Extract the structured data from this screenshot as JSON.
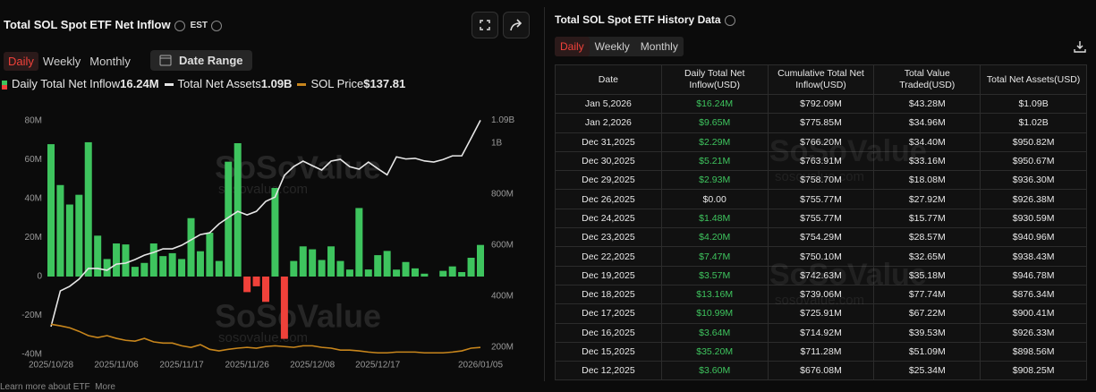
{
  "header": {
    "title": "Total SOL Spot ETF Net Inflow",
    "timezone": "EST",
    "tabs": [
      "Daily",
      "Weekly",
      "Monthly"
    ],
    "date_range": "Date Range"
  },
  "watermark": {
    "brand": "SoSoValue",
    "site": "sosovalue.com"
  },
  "chart_data": {
    "type": "bar",
    "categories": [
      "2025/10/28",
      null,
      null,
      null,
      null,
      null,
      null,
      "2025/11/06",
      null,
      null,
      null,
      null,
      null,
      null,
      "2025/11/17",
      null,
      null,
      null,
      null,
      null,
      null,
      "2025/11/26",
      null,
      null,
      null,
      null,
      null,
      null,
      "2025/12/08",
      null,
      null,
      null,
      null,
      null,
      null,
      "2025/12/17",
      null,
      null,
      null,
      null,
      null,
      null,
      null,
      null,
      null,
      null,
      "2026/01/05"
    ],
    "series": [
      {
        "name": "Daily Total Net Inflow",
        "color": "#3ec45e",
        "negative_color": "#f0413a",
        "values": [
          68000000,
          47000000,
          37000000,
          42000000,
          69000000,
          21000000,
          9000000,
          17000000,
          16500000,
          5000000,
          7000000,
          17000000,
          10500000,
          12000000,
          9000000,
          30000000,
          13000000,
          22500000,
          8000000,
          59000000,
          68500000,
          -8000000,
          -5000000,
          -13000000,
          45500000,
          -32000000,
          8000000,
          15500000,
          14000000,
          8500000,
          15500000,
          8000000,
          3600000,
          35200000,
          3640000,
          10990000,
          13160000,
          3570000,
          7470000,
          4200000,
          1480000,
          0,
          2930000,
          5210000,
          2290000,
          9650000,
          16240000
        ]
      },
      {
        "name": "Total Net Assets",
        "color": "#e6e6e6",
        "axis": "y2",
        "values": [
          281000000,
          421000000,
          439000000,
          467000000,
          509000000,
          509000000,
          502000000,
          526000000,
          530000000,
          544000000,
          561000000,
          572000000,
          586000000,
          586000000,
          600000000,
          621000000,
          642000000,
          649000000,
          684000000,
          709000000,
          733000000,
          719000000,
          733000000,
          772000000,
          789000000,
          874000000,
          909000000,
          930000000,
          912000000,
          895000000,
          930000000,
          937000000,
          908250000,
          898560000,
          926330000,
          900410000,
          876340000,
          946780000,
          938430000,
          940960000,
          930590000,
          926380000,
          936300000,
          950670000,
          950820000,
          1020000000,
          1090000000
        ]
      },
      {
        "name": "SOL Price",
        "color": "#c8861c",
        "axis": "y3",
        "values": [
          197,
          193,
          188,
          179,
          168,
          163,
          168,
          161,
          156,
          154,
          161,
          152,
          149,
          149,
          142,
          138,
          145,
          133,
          129,
          133,
          136,
          138,
          136,
          140,
          142,
          140,
          138,
          142,
          142,
          138,
          136,
          131,
          131,
          129,
          126,
          124,
          124,
          126,
          126,
          126,
          124,
          124,
          124,
          126,
          129,
          136,
          137.81
        ]
      }
    ],
    "legend_values": [
      "16.24M",
      "1.09B",
      "$137.81"
    ],
    "ylim": [
      -40000000,
      80000000
    ],
    "yticks": [
      {
        "value": -40000000,
        "label": "-40M"
      },
      {
        "value": -20000000,
        "label": "-20M"
      },
      0,
      {
        "value": 20000000,
        "label": "20M"
      },
      {
        "value": 40000000,
        "label": "40M"
      },
      {
        "value": 60000000,
        "label": "60M"
      },
      {
        "value": 80000000,
        "label": "80M"
      }
    ],
    "y2lim": [
      172000000,
      1088000000
    ],
    "y2ticks": [
      {
        "value": 200000000,
        "label": "200M"
      },
      {
        "value": 400000000,
        "label": "400M"
      },
      {
        "value": 600000000,
        "label": "600M"
      },
      {
        "value": 800000000,
        "label": "800M"
      },
      {
        "value": 1000000000,
        "label": "1B"
      },
      {
        "value": 1090000000,
        "label": "1.09B"
      }
    ],
    "y3lim": [
      120,
      717
    ],
    "grid": false
  },
  "history": {
    "title": "Total SOL Spot ETF History Data",
    "tabs": [
      "Daily",
      "Weekly",
      "Monthly"
    ],
    "positive_color": "#3ec45e",
    "columns": [
      "Date",
      "Daily Total Net Inflow(USD)",
      "Cumulative Total Net Inflow(USD)",
      "Total Value Traded(USD)",
      "Total Net Assets(USD)"
    ],
    "rows": [
      [
        "Jan 5,2026",
        "$16.24M",
        "$792.09M",
        "$43.28M",
        "$1.09B"
      ],
      [
        "Jan 2,2026",
        "$9.65M",
        "$775.85M",
        "$34.96M",
        "$1.02B"
      ],
      [
        "Dec 31,2025",
        "$2.29M",
        "$766.20M",
        "$34.40M",
        "$950.82M"
      ],
      [
        "Dec 30,2025",
        "$5.21M",
        "$763.91M",
        "$33.16M",
        "$950.67M"
      ],
      [
        "Dec 29,2025",
        "$2.93M",
        "$758.70M",
        "$18.08M",
        "$936.30M"
      ],
      [
        "Dec 26,2025",
        "$0.00",
        "$755.77M",
        "$27.92M",
        "$926.38M"
      ],
      [
        "Dec 24,2025",
        "$1.48M",
        "$755.77M",
        "$15.77M",
        "$930.59M"
      ],
      [
        "Dec 23,2025",
        "$4.20M",
        "$754.29M",
        "$28.57M",
        "$940.96M"
      ],
      [
        "Dec 22,2025",
        "$7.47M",
        "$750.10M",
        "$32.65M",
        "$938.43M"
      ],
      [
        "Dec 19,2025",
        "$3.57M",
        "$742.63M",
        "$35.18M",
        "$946.78M"
      ],
      [
        "Dec 18,2025",
        "$13.16M",
        "$739.06M",
        "$77.74M",
        "$876.34M"
      ],
      [
        "Dec 17,2025",
        "$10.99M",
        "$725.91M",
        "$67.22M",
        "$900.41M"
      ],
      [
        "Dec 16,2025",
        "$3.64M",
        "$714.92M",
        "$39.53M",
        "$926.33M"
      ],
      [
        "Dec 15,2025",
        "$35.20M",
        "$711.28M",
        "$51.09M",
        "$898.56M"
      ],
      [
        "Dec 12,2025",
        "$3.60M",
        "$676.08M",
        "$25.34M",
        "$908.25M"
      ]
    ]
  },
  "footer": {
    "learn_more": "Learn more about ETF",
    "more": "More"
  }
}
